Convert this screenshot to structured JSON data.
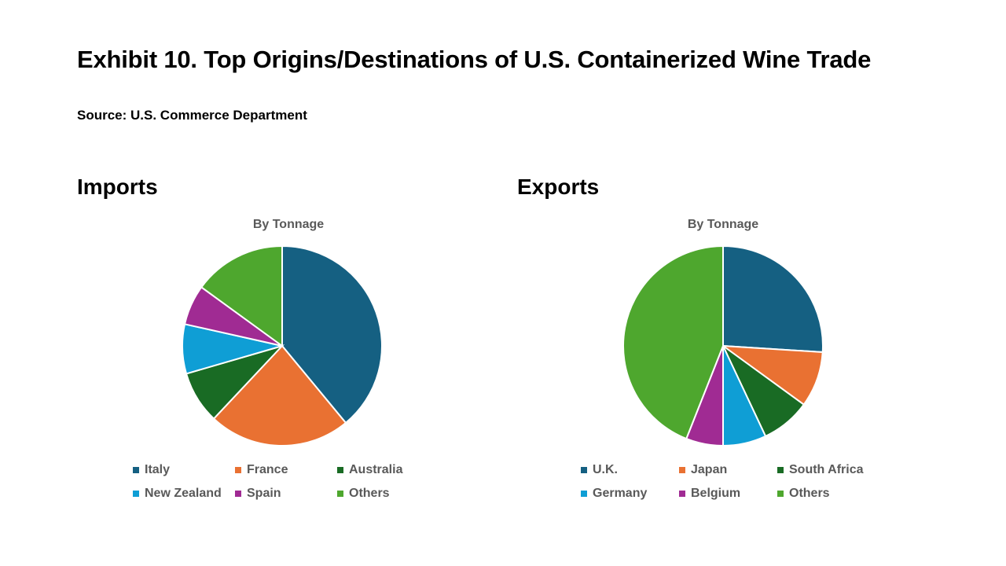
{
  "slide": {
    "title": "Exhibit 10. Top Origins/Destinations of U.S. Containerized Wine Trade",
    "source": "Source: U.S. Commerce Department"
  },
  "chart_data": [
    {
      "type": "pie",
      "section_heading": "Imports",
      "title": "By Tonnage",
      "categories": [
        "Italy",
        "France",
        "Australia",
        "New Zealand",
        "Spain",
        "Others"
      ],
      "values": [
        39,
        23,
        8.5,
        8,
        6.5,
        15
      ],
      "colors": [
        "#156082",
        "#E97132",
        "#196B24",
        "#0F9ED5",
        "#A02B93",
        "#4EA72E"
      ],
      "legend_position": "bottom"
    },
    {
      "type": "pie",
      "section_heading": "Exports",
      "title": "By Tonnage",
      "categories": [
        "U.K.",
        "Japan",
        "South Africa",
        "Germany",
        "Belgium",
        "Others"
      ],
      "values": [
        26,
        9,
        8,
        7,
        6,
        44
      ],
      "colors": [
        "#156082",
        "#E97132",
        "#196B24",
        "#0F9ED5",
        "#A02B93",
        "#4EA72E"
      ],
      "legend_position": "bottom"
    }
  ]
}
